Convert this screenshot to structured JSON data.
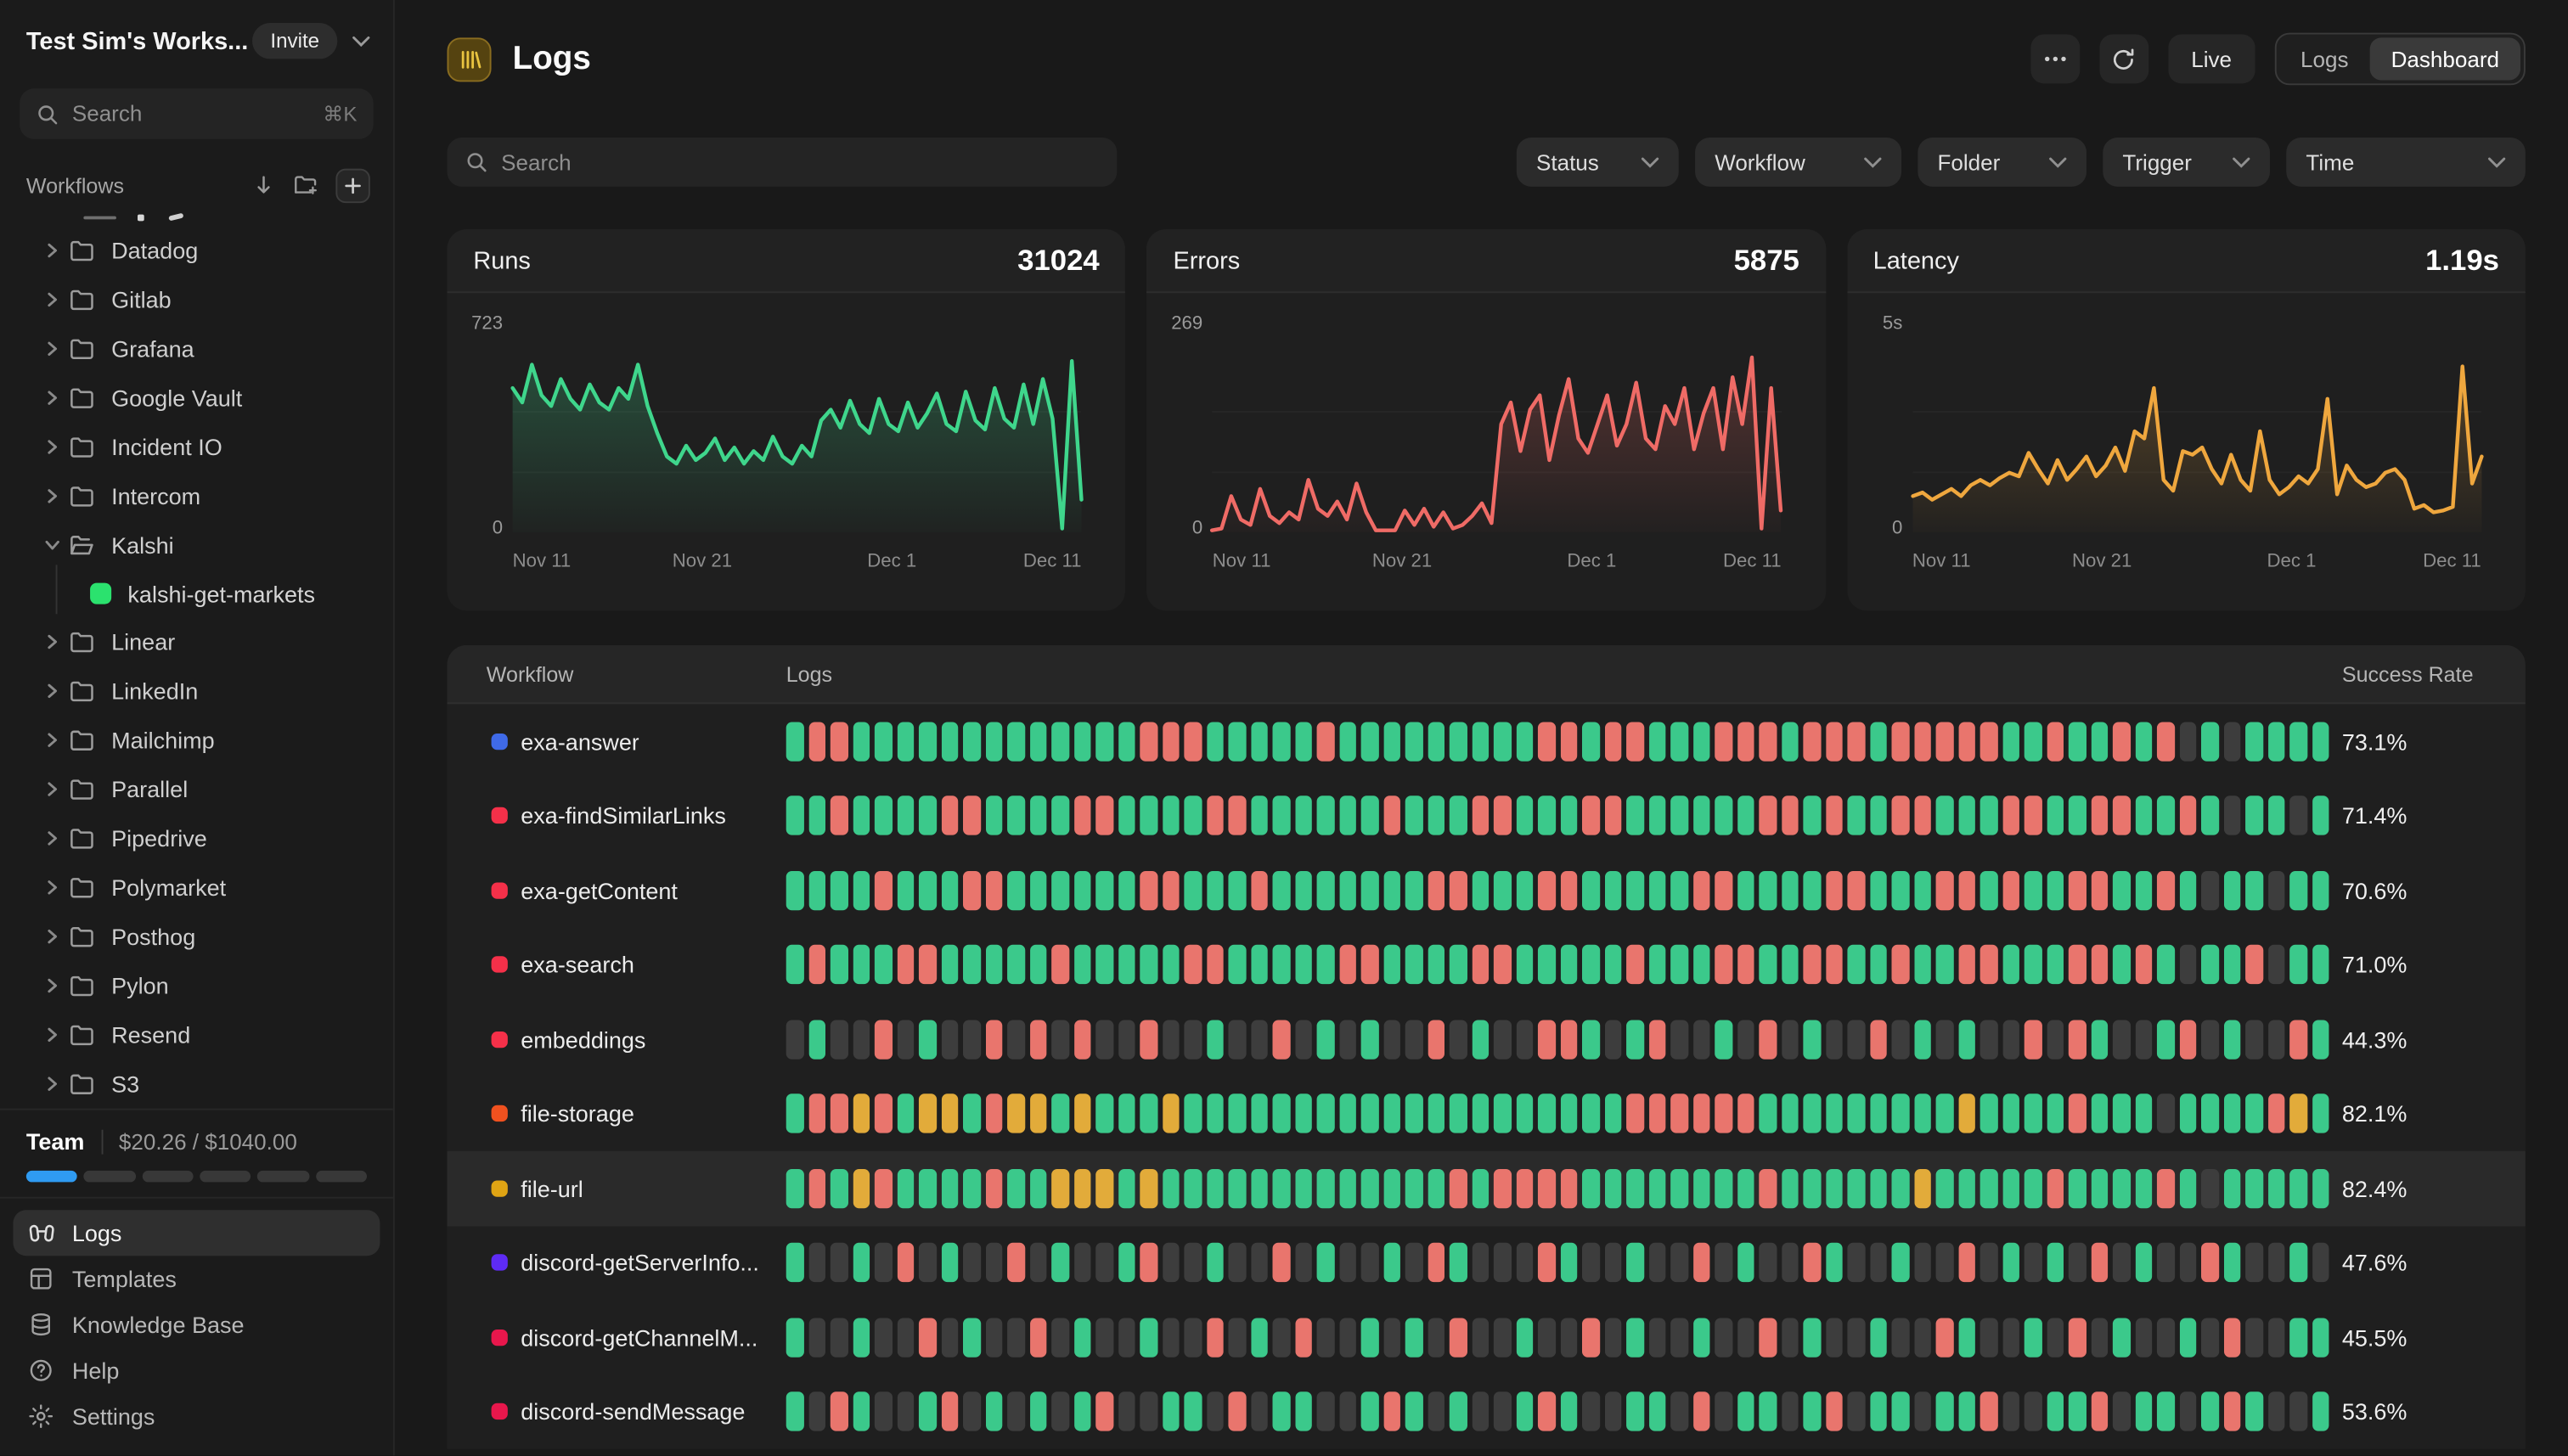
{
  "sidebar": {
    "workspace": {
      "name": "Test Sim's Works...",
      "invite_label": "Invite"
    },
    "search": {
      "placeholder": "Search",
      "shortcut": "⌘K"
    },
    "workflows_label": "Workflows",
    "folders": [
      {
        "name": "Datadog",
        "expanded": false
      },
      {
        "name": "Gitlab",
        "expanded": false
      },
      {
        "name": "Grafana",
        "expanded": false
      },
      {
        "name": "Google Vault",
        "expanded": false
      },
      {
        "name": "Incident IO",
        "expanded": false
      },
      {
        "name": "Intercom",
        "expanded": false
      },
      {
        "name": "Kalshi",
        "expanded": true
      },
      {
        "name": "Linear",
        "expanded": false
      },
      {
        "name": "LinkedIn",
        "expanded": false
      },
      {
        "name": "Mailchimp",
        "expanded": false
      },
      {
        "name": "Parallel",
        "expanded": false
      },
      {
        "name": "Pipedrive",
        "expanded": false
      },
      {
        "name": "Polymarket",
        "expanded": false
      },
      {
        "name": "Posthog",
        "expanded": false
      },
      {
        "name": "Pylon",
        "expanded": false
      },
      {
        "name": "Resend",
        "expanded": false
      },
      {
        "name": "S3",
        "expanded": false
      }
    ],
    "kalshi_child": {
      "name": "kalshi-get-markets",
      "color": "#2be26e",
      "parent": "Kalshi"
    },
    "team": {
      "label": "Team",
      "usage": "$20.26 / $1040.00",
      "segments": 6,
      "filled": 1,
      "fill_color": "#2f9bf2"
    },
    "nav": [
      {
        "label": "Logs",
        "icon": "logs-icon",
        "active": true
      },
      {
        "label": "Templates",
        "icon": "templates-icon",
        "active": false
      },
      {
        "label": "Knowledge Base",
        "icon": "knowledge-base-icon",
        "active": false
      },
      {
        "label": "Help",
        "icon": "help-icon",
        "active": false
      },
      {
        "label": "Settings",
        "icon": "settings-icon",
        "active": false
      }
    ]
  },
  "header": {
    "title": "Logs",
    "more_label": "...",
    "live_label": "Live",
    "view_toggle": {
      "options": [
        "Logs",
        "Dashboard"
      ],
      "active": "Dashboard"
    },
    "badge_color": "#e9c440"
  },
  "filters": {
    "search_placeholder": "Search",
    "dropdowns": [
      "Status",
      "Workflow",
      "Folder",
      "Trigger",
      "Time"
    ]
  },
  "chart_data": [
    {
      "type": "line",
      "title": "Runs",
      "total": "31024",
      "color": "#3fd68c",
      "y_max_label": "723",
      "y_min_label": "0",
      "ylim": [
        0,
        723
      ],
      "grid": true,
      "x_ticks": [
        "Nov 11",
        "Nov 21",
        "Dec 1",
        "Dec 11"
      ],
      "values": [
        0.8,
        0.72,
        0.93,
        0.76,
        0.7,
        0.85,
        0.74,
        0.68,
        0.82,
        0.72,
        0.68,
        0.8,
        0.74,
        0.93,
        0.7,
        0.55,
        0.42,
        0.38,
        0.48,
        0.4,
        0.44,
        0.52,
        0.4,
        0.47,
        0.38,
        0.45,
        0.4,
        0.53,
        0.42,
        0.38,
        0.48,
        0.42,
        0.62,
        0.68,
        0.58,
        0.73,
        0.6,
        0.55,
        0.74,
        0.6,
        0.56,
        0.72,
        0.58,
        0.66,
        0.77,
        0.6,
        0.56,
        0.78,
        0.62,
        0.57,
        0.8,
        0.63,
        0.58,
        0.82,
        0.6,
        0.85,
        0.63,
        0.02,
        0.95,
        0.18
      ]
    },
    {
      "type": "line",
      "title": "Errors",
      "total": "5875",
      "color": "#ef6b66",
      "y_max_label": "269",
      "y_min_label": "0",
      "ylim": [
        0,
        269
      ],
      "grid": true,
      "x_ticks": [
        "Nov 11",
        "Nov 21",
        "Dec 1",
        "Dec 11"
      ],
      "values": [
        0.01,
        0.02,
        0.2,
        0.07,
        0.04,
        0.24,
        0.09,
        0.05,
        0.11,
        0.07,
        0.29,
        0.13,
        0.09,
        0.17,
        0.07,
        0.27,
        0.11,
        0.01,
        0.01,
        0.01,
        0.12,
        0.04,
        0.13,
        0.03,
        0.11,
        0.02,
        0.04,
        0.09,
        0.16,
        0.05,
        0.6,
        0.72,
        0.45,
        0.68,
        0.76,
        0.4,
        0.65,
        0.85,
        0.52,
        0.44,
        0.6,
        0.76,
        0.48,
        0.6,
        0.83,
        0.52,
        0.46,
        0.7,
        0.6,
        0.8,
        0.46,
        0.66,
        0.8,
        0.46,
        0.86,
        0.6,
        0.97,
        0.02,
        0.8,
        0.12
      ]
    },
    {
      "type": "line",
      "title": "Latency",
      "total": "1.19s",
      "color": "#efa73e",
      "y_max_label": "5s",
      "y_min_label": "0",
      "ylim": [
        0,
        5
      ],
      "grid": true,
      "x_ticks": [
        "Nov 11",
        "Nov 21",
        "Dec 1",
        "Dec 11"
      ],
      "values": [
        0.2,
        0.22,
        0.18,
        0.21,
        0.24,
        0.2,
        0.26,
        0.29,
        0.26,
        0.3,
        0.33,
        0.31,
        0.44,
        0.35,
        0.27,
        0.4,
        0.29,
        0.35,
        0.42,
        0.31,
        0.37,
        0.47,
        0.34,
        0.56,
        0.52,
        0.8,
        0.29,
        0.23,
        0.45,
        0.43,
        0.47,
        0.35,
        0.27,
        0.43,
        0.29,
        0.23,
        0.56,
        0.29,
        0.21,
        0.25,
        0.31,
        0.27,
        0.35,
        0.74,
        0.21,
        0.37,
        0.29,
        0.25,
        0.27,
        0.33,
        0.35,
        0.29,
        0.13,
        0.15,
        0.11,
        0.12,
        0.14,
        0.92,
        0.27,
        0.42
      ]
    }
  ],
  "table": {
    "columns": [
      "Workflow",
      "Logs",
      "Success Rate"
    ],
    "bar_colors": {
      "g": "#3bc98b",
      "r": "#e9756d",
      "y": "#e2ab3a",
      "d": "#3d3d3d"
    },
    "rows": [
      {
        "name": "exa-answer",
        "dot": "#3f6ae8",
        "rate": "73.1%",
        "highlight": false,
        "bars": [
          "grrggggggg",
          "ggggggrrrg",
          "ggggrggggg",
          "ggggrrgrrg",
          "ggrrrgrrrg",
          "rrrrrggrgg",
          "rgrdgdgggg"
        ]
      },
      {
        "name": "exa-findSimilarLinks",
        "dot": "#f53049",
        "rate": "71.4%",
        "highlight": false,
        "bars": [
          "ggrggggrrg",
          "gggrrggggr",
          "rggggggrgg",
          "grrgggrrgg",
          "ggggrrgrgg",
          "rrgggrrggr",
          "rggrgdggdg"
        ]
      },
      {
        "name": "exa-getContent",
        "dot": "#f53049",
        "rate": "70.6%",
        "highlight": false,
        "bars": [
          "ggggrgggrr",
          "ggggggrrgg",
          "grgggggggr",
          "rgggrrgggg",
          "grrggggrrg",
          "ggrrgrggrr",
          "ggrgdggdgg"
        ]
      },
      {
        "name": "exa-search",
        "dot": "#f53049",
        "rate": "71.0%",
        "highlight": false,
        "bars": [
          "grgggrrggg",
          "ggrgggggrr",
          "gggggrrggg",
          "grrgggggrg",
          "ggrrggrrgg",
          "rggrrgggrr",
          "grgdggrdgg"
        ]
      },
      {
        "name": "embeddings",
        "dot": "#f53049",
        "rate": "44.3%",
        "highlight": false,
        "bars": [
          "dgddrdgddr",
          "drdrddrddg",
          "ddrdgdgddr",
          "dgddrrgdgr",
          "ddgdrdgddr",
          "dgdgddrdrg",
          "ddgrdgddrg"
        ]
      },
      {
        "name": "file-storage",
        "dot": "#f0511f",
        "rate": "82.1%",
        "highlight": false,
        "bars": [
          "grryrgyygr",
          "yygygggygg",
          "gggggggggg",
          "ggggggggrr",
          "rrrrgggggg",
          "gggyggggrg",
          "ggdggggryg"
        ]
      },
      {
        "name": "file-url",
        "dot": "#dfa414",
        "rate": "82.4%",
        "highlight": true,
        "bars": [
          "grgyrggggr",
          "ggyyygyggg",
          "gggggggggg",
          "rgrrrrgggg",
          "ggggrggggg",
          "gygggggrgg",
          "ggrgdggggg"
        ]
      },
      {
        "name": "discord-getServerInfo...",
        "dot": "#5e2bf5",
        "rate": "47.6%",
        "highlight": false,
        "bars": [
          "gddgdrdgdd",
          "rdgddgrddg",
          "ddrdgddgdr",
          "gdddrgddgd",
          "drdgddrgdd",
          "gddrdgdgdr",
          "dgddrgddgd"
        ]
      },
      {
        "name": "discord-getChannelM...",
        "dot": "#e8174c",
        "rate": "45.5%",
        "highlight": false,
        "bars": [
          "gddgddrdgd",
          "drdgddgddr",
          "dgdrddgdgd",
          "rddgddrdgd",
          "dgddrdgddg",
          "ddrgddgdrd",
          "gddgdrddgg"
        ]
      },
      {
        "name": "discord-sendMessage",
        "dot": "#e8174c",
        "rate": "53.6%",
        "highlight": false,
        "bars": [
          "gdrgddgrdg",
          "dgdgrddggd",
          "rdggddgrgd",
          "gddgrgddgg",
          "drdggdgrdg",
          "gdggrddggr",
          "dggdgrgddg"
        ]
      }
    ]
  }
}
